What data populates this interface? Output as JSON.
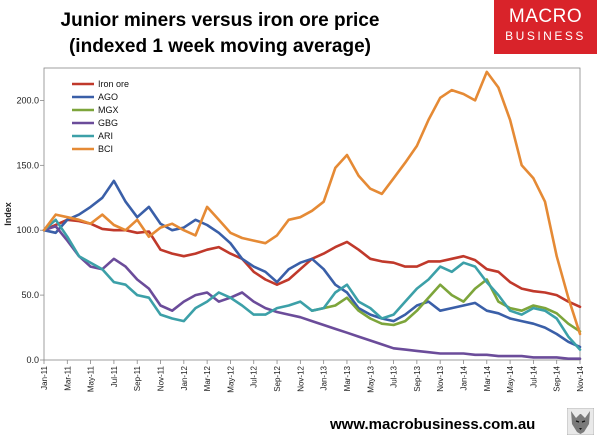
{
  "header": {
    "title_line1": "Junior miners versus iron ore price",
    "title_line2": "(indexed 1 week moving average)"
  },
  "logo": {
    "line1": "MACRO",
    "line2": "BUSINESS",
    "bg": "#d9232a"
  },
  "footer": {
    "url": "www.macrobusiness.com.au"
  },
  "chart_data": {
    "type": "line",
    "ylabel": "Index",
    "xlabel": "",
    "ylim": [
      0,
      225
    ],
    "yticks": [
      0,
      50,
      100,
      150,
      200
    ],
    "ytick_labels": [
      "0.0",
      "50.0",
      "100.0",
      "150.0",
      "200.0"
    ],
    "xlim": [
      "2011-01",
      "2014-11"
    ],
    "xtick_labels": [
      "Jan-11",
      "Mar-11",
      "May-11",
      "Jul-11",
      "Sep-11",
      "Nov-11",
      "Jan-12",
      "Mar-12",
      "May-12",
      "Jul-12",
      "Sep-12",
      "Nov-12",
      "Jan-13",
      "Mar-13",
      "May-13",
      "Jul-13",
      "Sep-13",
      "Nov-13",
      "Jan-14",
      "Mar-14",
      "May-14",
      "Jul-14",
      "Sep-14",
      "Nov-14"
    ],
    "legend_position": "top-left",
    "grid": false,
    "series": [
      {
        "name": "Iron ore",
        "color": "#c0392b",
        "x": [
          "2011-01",
          "2011-02",
          "2011-03",
          "2011-04",
          "2011-05",
          "2011-06",
          "2011-07",
          "2011-08",
          "2011-09",
          "2011-10",
          "2011-11",
          "2011-12",
          "2012-01",
          "2012-02",
          "2012-03",
          "2012-04",
          "2012-05",
          "2012-06",
          "2012-07",
          "2012-08",
          "2012-09",
          "2012-10",
          "2012-11",
          "2012-12",
          "2013-01",
          "2013-02",
          "2013-03",
          "2013-04",
          "2013-05",
          "2013-06",
          "2013-07",
          "2013-08",
          "2013-09",
          "2013-10",
          "2013-11",
          "2013-12",
          "2014-01",
          "2014-02",
          "2014-03",
          "2014-04",
          "2014-05",
          "2014-06",
          "2014-07",
          "2014-08",
          "2014-09",
          "2014-10",
          "2014-11"
        ],
        "values": [
          100,
          104,
          108,
          107,
          105,
          101,
          100,
          100,
          98,
          99,
          85,
          82,
          80,
          82,
          85,
          87,
          82,
          78,
          68,
          62,
          58,
          62,
          70,
          78,
          82,
          87,
          91,
          85,
          78,
          76,
          75,
          72,
          72,
          76,
          76,
          78,
          80,
          77,
          70,
          68,
          60,
          55,
          53,
          52,
          50,
          45,
          41
        ]
      },
      {
        "name": "AGO",
        "color": "#3a5fa8",
        "x": [
          "2011-01",
          "2011-02",
          "2011-03",
          "2011-04",
          "2011-05",
          "2011-06",
          "2011-07",
          "2011-08",
          "2011-09",
          "2011-10",
          "2011-11",
          "2011-12",
          "2012-01",
          "2012-02",
          "2012-03",
          "2012-04",
          "2012-05",
          "2012-06",
          "2012-07",
          "2012-08",
          "2012-09",
          "2012-10",
          "2012-11",
          "2012-12",
          "2013-01",
          "2013-02",
          "2013-03",
          "2013-04",
          "2013-05",
          "2013-06",
          "2013-07",
          "2013-08",
          "2013-09",
          "2013-10",
          "2013-11",
          "2013-12",
          "2014-01",
          "2014-02",
          "2014-03",
          "2014-04",
          "2014-05",
          "2014-06",
          "2014-07",
          "2014-08",
          "2014-09",
          "2014-10",
          "2014-11"
        ],
        "values": [
          100,
          98,
          108,
          112,
          118,
          125,
          138,
          122,
          110,
          118,
          105,
          100,
          102,
          108,
          104,
          98,
          90,
          78,
          72,
          68,
          60,
          70,
          75,
          78,
          70,
          58,
          52,
          40,
          35,
          32,
          30,
          35,
          42,
          45,
          38,
          40,
          42,
          44,
          38,
          36,
          32,
          30,
          28,
          25,
          20,
          14,
          10
        ]
      },
      {
        "name": "MGX",
        "color": "#7da53b",
        "x": [
          "2012-12",
          "2013-01",
          "2013-02",
          "2013-03",
          "2013-04",
          "2013-05",
          "2013-06",
          "2013-07",
          "2013-08",
          "2013-09",
          "2013-10",
          "2013-11",
          "2013-12",
          "2014-01",
          "2014-02",
          "2014-03",
          "2014-04",
          "2014-05",
          "2014-06",
          "2014-07",
          "2014-08",
          "2014-09",
          "2014-10",
          "2014-11"
        ],
        "values": [
          38,
          40,
          42,
          48,
          38,
          32,
          28,
          27,
          30,
          38,
          48,
          58,
          50,
          45,
          55,
          62,
          45,
          40,
          38,
          42,
          40,
          36,
          28,
          22
        ]
      },
      {
        "name": "GBG",
        "color": "#6b4c9a",
        "x": [
          "2011-01",
          "2011-02",
          "2011-03",
          "2011-04",
          "2011-05",
          "2011-06",
          "2011-07",
          "2011-08",
          "2011-09",
          "2011-10",
          "2011-11",
          "2011-12",
          "2012-01",
          "2012-02",
          "2012-03",
          "2012-04",
          "2012-05",
          "2012-06",
          "2012-07",
          "2012-08",
          "2012-09",
          "2012-10",
          "2012-11",
          "2012-12",
          "2013-01",
          "2013-02",
          "2013-03",
          "2013-04",
          "2013-05",
          "2013-06",
          "2013-07",
          "2013-08",
          "2013-09",
          "2013-10",
          "2013-11",
          "2013-12",
          "2014-01",
          "2014-02",
          "2014-03",
          "2014-04",
          "2014-05",
          "2014-06",
          "2014-07",
          "2014-08",
          "2014-09",
          "2014-10",
          "2014-11"
        ],
        "values": [
          100,
          103,
          92,
          80,
          72,
          70,
          78,
          72,
          62,
          55,
          42,
          38,
          45,
          50,
          52,
          45,
          48,
          52,
          45,
          40,
          37,
          35,
          33,
          30,
          27,
          24,
          21,
          18,
          15,
          12,
          9,
          8,
          7,
          6,
          5,
          5,
          5,
          4,
          4,
          3,
          3,
          3,
          2,
          2,
          2,
          1,
          1
        ]
      },
      {
        "name": "ARI",
        "color": "#3ca0a8",
        "x": [
          "2011-01",
          "2011-02",
          "2011-03",
          "2011-04",
          "2011-05",
          "2011-06",
          "2011-07",
          "2011-08",
          "2011-09",
          "2011-10",
          "2011-11",
          "2011-12",
          "2012-01",
          "2012-02",
          "2012-03",
          "2012-04",
          "2012-05",
          "2012-06",
          "2012-07",
          "2012-08",
          "2012-09",
          "2012-10",
          "2012-11",
          "2012-12",
          "2013-01",
          "2013-02",
          "2013-03",
          "2013-04",
          "2013-05",
          "2013-06",
          "2013-07",
          "2013-08",
          "2013-09",
          "2013-10",
          "2013-11",
          "2013-12",
          "2014-01",
          "2014-02",
          "2014-03",
          "2014-04",
          "2014-05",
          "2014-06",
          "2014-07",
          "2014-08",
          "2014-09",
          "2014-10",
          "2014-11"
        ],
        "values": [
          100,
          108,
          95,
          80,
          75,
          70,
          60,
          58,
          50,
          48,
          35,
          32,
          30,
          40,
          45,
          52,
          48,
          42,
          35,
          35,
          40,
          42,
          45,
          38,
          40,
          52,
          58,
          45,
          40,
          32,
          35,
          45,
          55,
          62,
          72,
          68,
          75,
          72,
          60,
          50,
          38,
          35,
          40,
          38,
          32,
          18,
          8
        ]
      },
      {
        "name": "BCI",
        "color": "#e58a35",
        "x": [
          "2011-01",
          "2011-02",
          "2011-03",
          "2011-04",
          "2011-05",
          "2011-06",
          "2011-07",
          "2011-08",
          "2011-09",
          "2011-10",
          "2011-11",
          "2011-12",
          "2012-01",
          "2012-02",
          "2012-03",
          "2012-04",
          "2012-05",
          "2012-06",
          "2012-07",
          "2012-08",
          "2012-09",
          "2012-10",
          "2012-11",
          "2012-12",
          "2013-01",
          "2013-02",
          "2013-03",
          "2013-04",
          "2013-05",
          "2013-06",
          "2013-07",
          "2013-08",
          "2013-09",
          "2013-10",
          "2013-11",
          "2013-12",
          "2014-01",
          "2014-02",
          "2014-03",
          "2014-04",
          "2014-05",
          "2014-06",
          "2014-07",
          "2014-08",
          "2014-09",
          "2014-10",
          "2014-11"
        ],
        "values": [
          100,
          112,
          110,
          108,
          105,
          112,
          104,
          100,
          108,
          95,
          102,
          105,
          100,
          96,
          118,
          108,
          98,
          94,
          92,
          90,
          96,
          108,
          110,
          115,
          122,
          148,
          158,
          142,
          132,
          128,
          140,
          152,
          165,
          185,
          202,
          208,
          205,
          200,
          222,
          210,
          185,
          150,
          140,
          122,
          80,
          48,
          20
        ]
      }
    ]
  }
}
